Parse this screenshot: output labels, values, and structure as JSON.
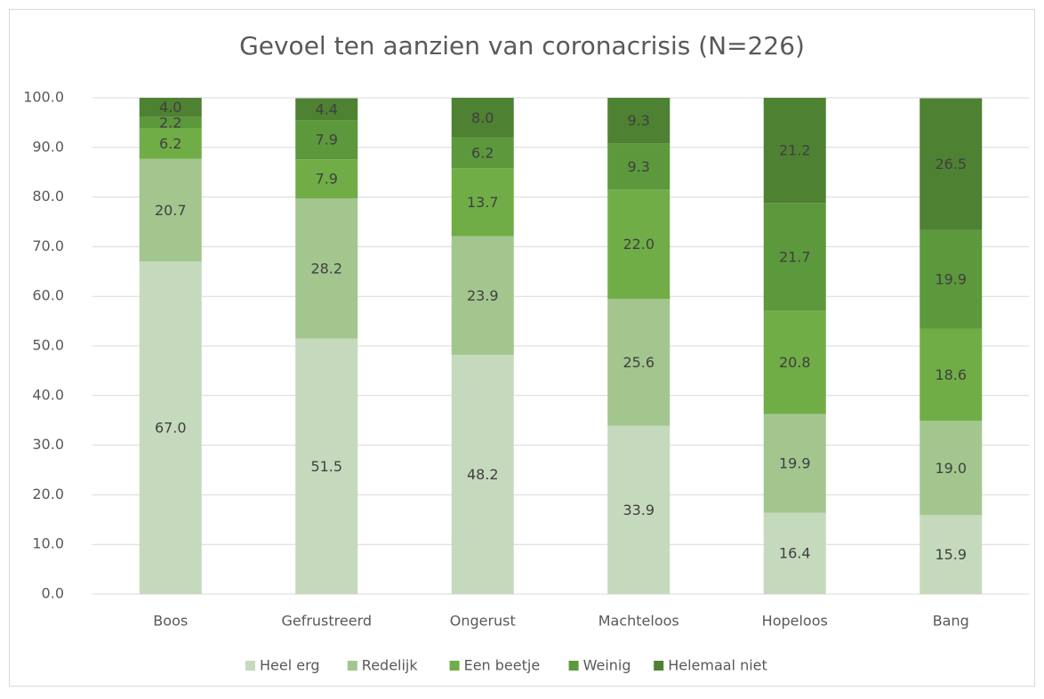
{
  "chart_data": {
    "type": "stacked_bar",
    "title": "Gevoel ten aanzien van coronacrisis (N=226)",
    "categories": [
      "Boos",
      "Gefrustreerd",
      "Ongerust",
      "Machteloos",
      "Hopeloos",
      "Bang"
    ],
    "series": [
      {
        "name": "Heel erg",
        "color": "#c5dabc",
        "values": [
          67.0,
          51.5,
          48.2,
          33.9,
          16.4,
          15.9
        ],
        "value_labels": [
          "67.0",
          "51.5",
          "48.2",
          "33.9",
          "16.4",
          "15.9"
        ]
      },
      {
        "name": "Redelijk",
        "color": "#a3c68f",
        "values": [
          20.7,
          28.2,
          23.9,
          25.6,
          19.9,
          19.0
        ],
        "value_labels": [
          "20.7",
          "28.2",
          "23.9",
          "25.6",
          "19.9",
          "19.0"
        ]
      },
      {
        "name": "Een beetje",
        "color": "#70ad47",
        "values": [
          6.2,
          7.9,
          13.7,
          22.0,
          20.8,
          18.6
        ],
        "value_labels": [
          "6.2",
          "7.9",
          "13.7",
          "22.0",
          "20.8",
          "18.6"
        ]
      },
      {
        "name": "Weinig",
        "color": "#5c983c",
        "values": [
          2.2,
          7.9,
          6.2,
          9.3,
          21.7,
          19.9
        ],
        "value_labels": [
          "2.2",
          "7.9",
          "6.2",
          "9.3",
          "21.7",
          "19.9"
        ]
      },
      {
        "name": "Helemaal niet",
        "color": "#4e8131",
        "values": [
          4.0,
          4.4,
          8.0,
          9.3,
          21.2,
          26.5
        ],
        "value_labels": [
          "4.0",
          "4.4",
          "8.0",
          "9.3",
          "21.2",
          "26.5"
        ]
      }
    ],
    "ylim": [
      0,
      100
    ],
    "yticks": [
      {
        "value": 0,
        "label": "0.0"
      },
      {
        "value": 10,
        "label": "10.0"
      },
      {
        "value": 20,
        "label": "20.0"
      },
      {
        "value": 30,
        "label": "30.0"
      },
      {
        "value": 40,
        "label": "40.0"
      },
      {
        "value": 50,
        "label": "50.0"
      },
      {
        "value": 60,
        "label": "60.0"
      },
      {
        "value": 70,
        "label": "70.0"
      },
      {
        "value": 80,
        "label": "80.0"
      },
      {
        "value": 90,
        "label": "90.0"
      },
      {
        "value": 100,
        "label": "100.0"
      }
    ],
    "grid": true,
    "legend": "bottom"
  }
}
